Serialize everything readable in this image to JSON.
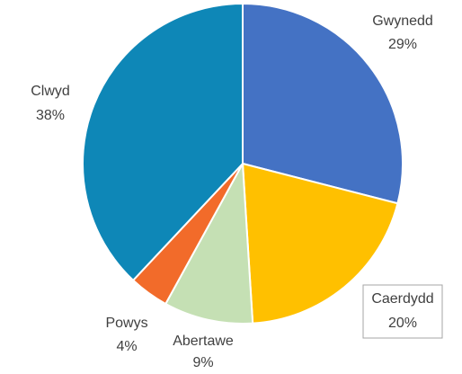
{
  "chart_data": {
    "type": "pie",
    "categories": [
      "Gwynedd",
      "Caerdydd",
      "Abertawe",
      "Powys",
      "Clwyd"
    ],
    "values": [
      29,
      20,
      9,
      4,
      38
    ],
    "value_labels": [
      "29%",
      "20%",
      "9%",
      "4%",
      "38%"
    ],
    "colors": [
      "#4472c4",
      "#ffc000",
      "#c5e0b4",
      "#f26b2a",
      "#0e87b7"
    ]
  }
}
